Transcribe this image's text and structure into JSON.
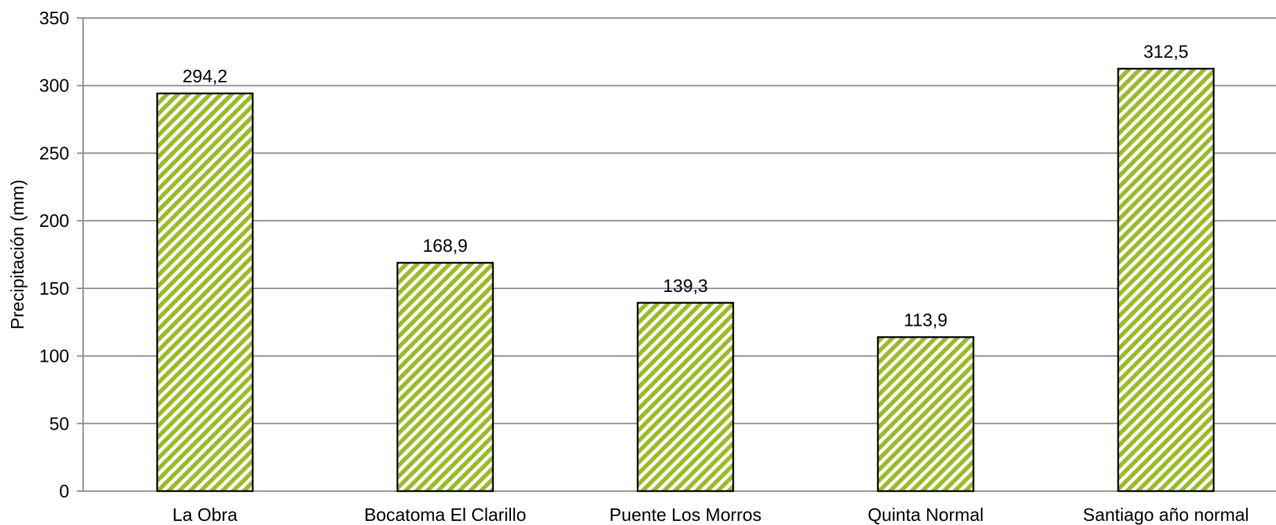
{
  "chart_data": {
    "type": "bar",
    "categories": [
      "La Obra",
      "Bocatoma El Clarillo",
      "Puente Los Morros",
      "Quinta Normal",
      "Santiago año normal"
    ],
    "values": [
      294.2,
      168.9,
      139.3,
      113.9,
      312.5
    ],
    "data_labels": [
      "294,2",
      "168,9",
      "139,3",
      "113,9",
      "312,5"
    ],
    "ylabel": "Precipitación (mm)",
    "ylim": [
      0,
      350
    ],
    "yticks": [
      0,
      50,
      100,
      150,
      200,
      250,
      300,
      350
    ],
    "grid": true,
    "legend": "none",
    "bar_fill_pattern": "diagonal-stripes",
    "colors": {
      "bar_stripe": "#9BBB27",
      "bar_background": "#ffffff",
      "bar_edge": "#000000",
      "gridline": "#8c8c8c",
      "axis": "#8c8c8c"
    }
  }
}
